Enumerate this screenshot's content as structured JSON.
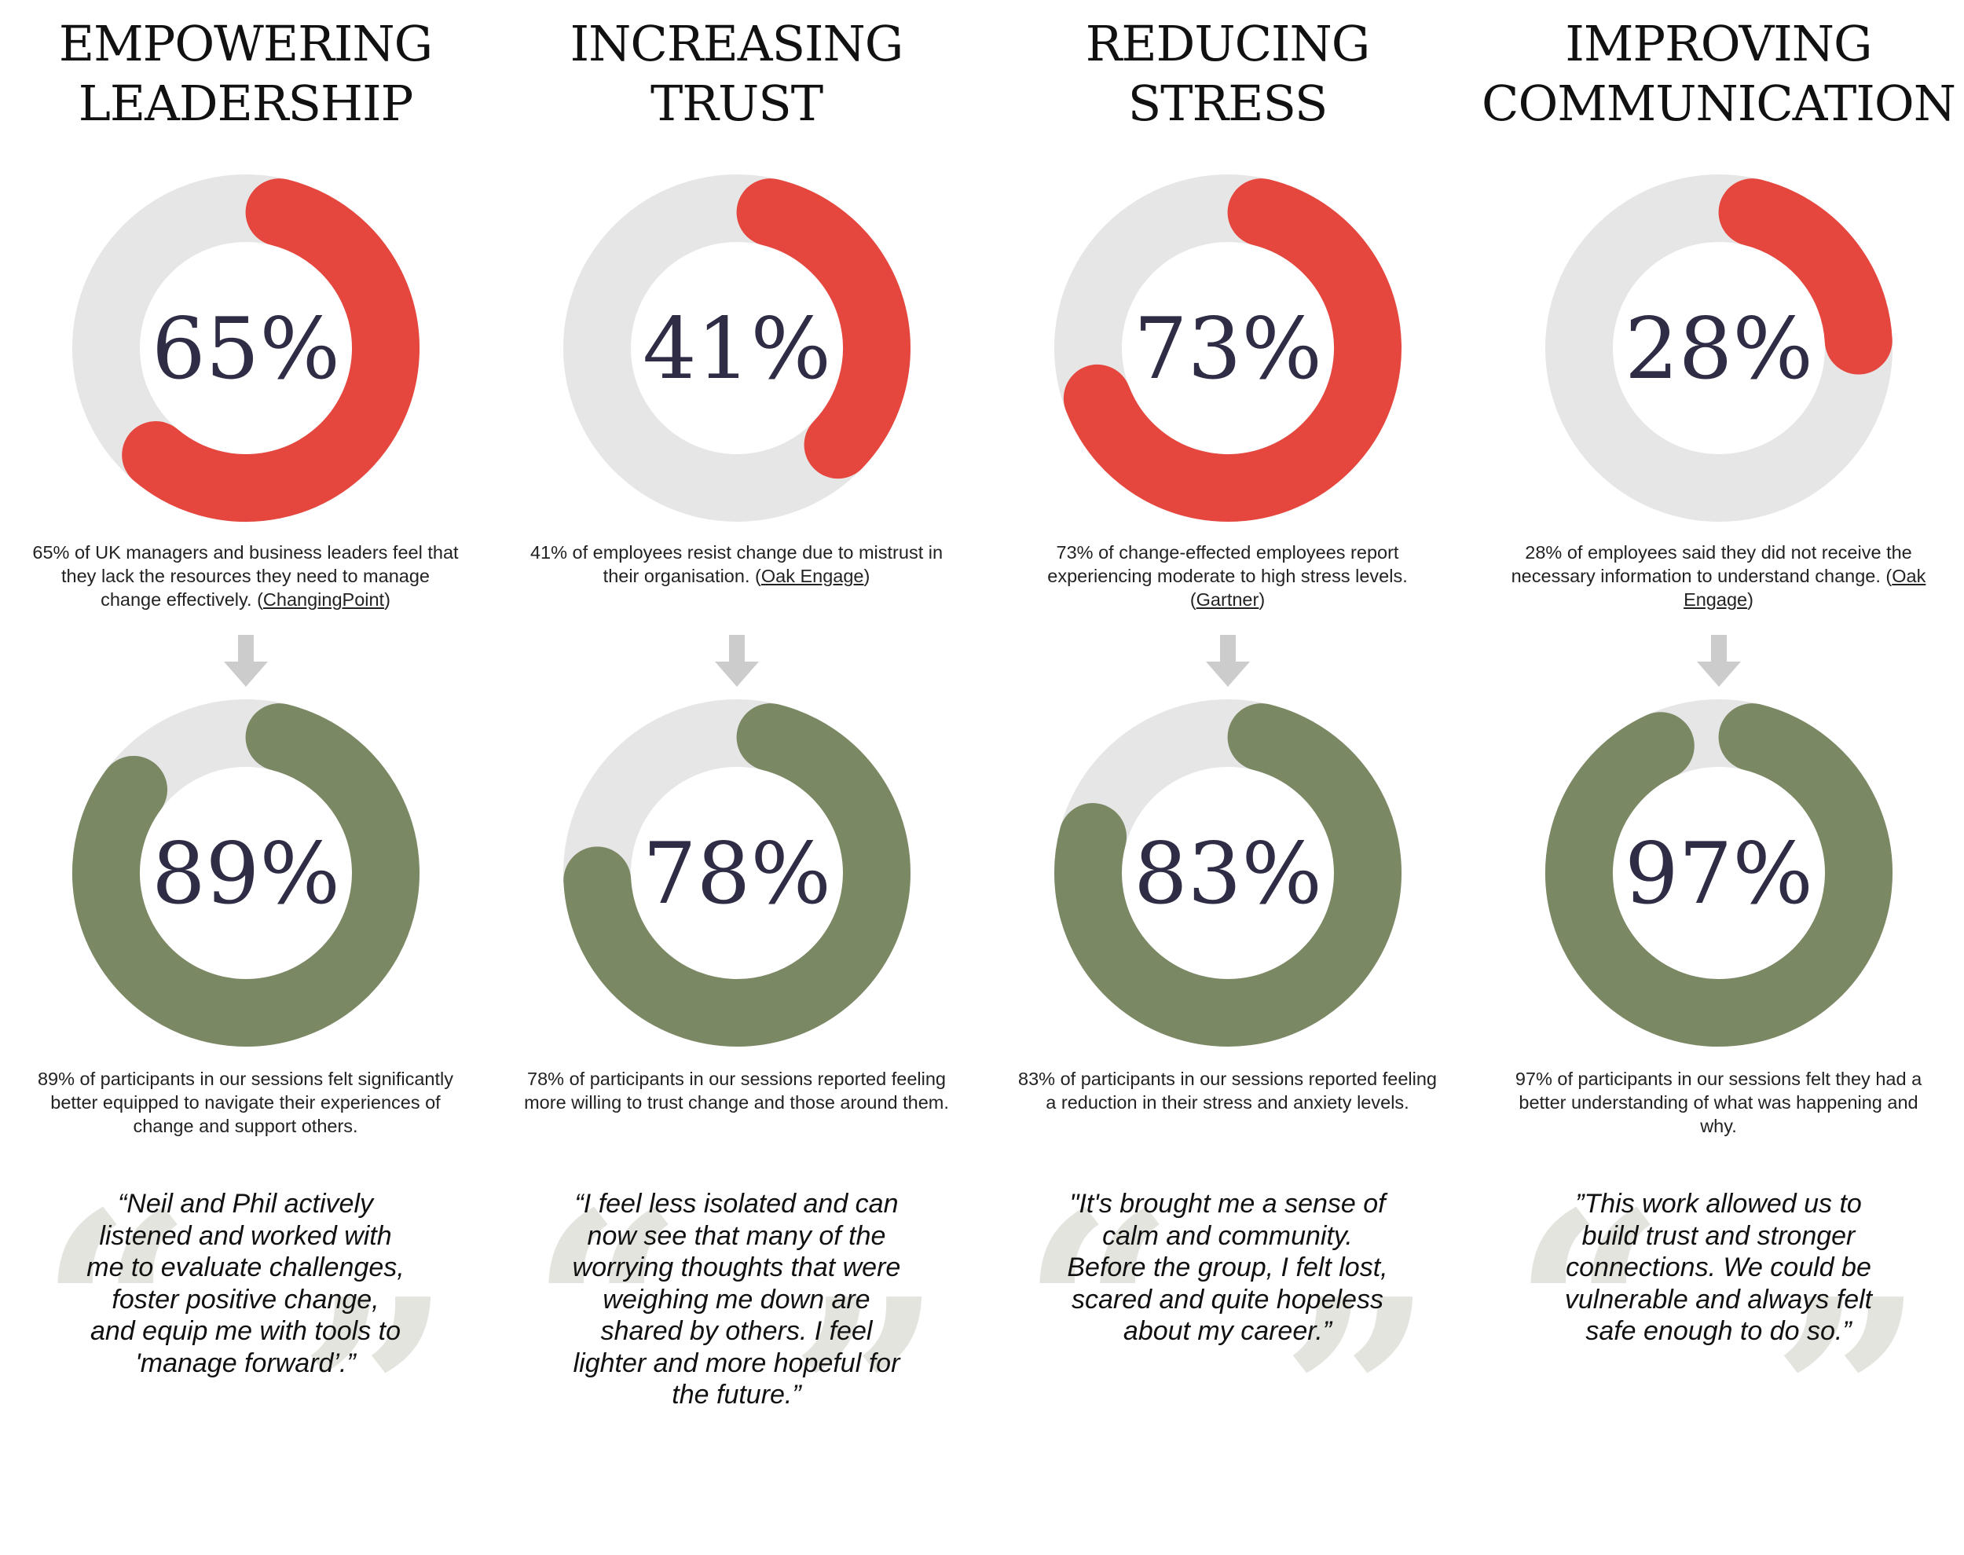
{
  "colors": {
    "negative": "#e5473e",
    "positive": "#7b8864",
    "track": "#e6e6e6",
    "arrow": "#cccccc",
    "quote_mark": "#e4e4df"
  },
  "columns": [
    {
      "heading": [
        "EMPOWERING",
        "LEADERSHIP"
      ],
      "before_label": "65%",
      "before_caption": "65% of UK managers and business leaders feel that they lack the resources they need to manage change effectively. (",
      "before_source": "ChangingPoint",
      "after_label": "89%",
      "after_caption": "89% of participants in our sessions felt significantly better equipped to navigate their experiences of change and support others.",
      "quote": [
        "“Neil and Phil actively",
        "listened and worked with",
        "me to evaluate challenges,",
        "foster positive change,",
        "and equip me with tools to",
        "'manage forward’.”"
      ]
    },
    {
      "heading": [
        "INCREASING",
        "TRUST"
      ],
      "before_label": "41%",
      "before_caption": "41% of employees resist change due to mistrust in their organisation. (",
      "before_source": "Oak Engage",
      "after_label": "78%",
      "after_caption": "78% of participants in our sessions reported feeling more willing to trust change and those around them.",
      "quote": [
        "“I feel less isolated and can",
        "now see that many of the",
        "worrying thoughts that were",
        "weighing me down are",
        "shared by others. I feel",
        "lighter and more hopeful for",
        "the future.”"
      ]
    },
    {
      "heading": [
        "REDUCING",
        "STRESS"
      ],
      "before_label": "73%",
      "before_caption": "73% of change-effected employees report experiencing moderate to high stress levels. (",
      "before_source": "Gartner",
      "after_label": "83%",
      "after_caption": "83% of participants in our sessions reported feeling a reduction in their stress and anxiety levels.",
      "quote": [
        "\"It's brought me a sense of",
        "calm and community.",
        "Before the group, I felt lost,",
        "scared and quite hopeless",
        "about my career.”"
      ]
    },
    {
      "heading": [
        "IMPROVING",
        "COMMUNICATION"
      ],
      "before_label": "28%",
      "before_caption": "28% of employees said they did not receive the necessary information to understand change. (",
      "before_source": "Oak Engage",
      "after_label": "97%",
      "after_caption": "97% of participants in our sessions felt they had a better understanding of what was happening and why.",
      "quote": [
        "”This work allowed us to",
        "build trust and stronger",
        "connections. We could be",
        "vulnerable and always felt",
        "safe enough to do so.”"
      ]
    }
  ],
  "chart_data": [
    {
      "type": "pie",
      "title": "EMPOWERING LEADERSHIP",
      "before_value": 65,
      "after_value": 89,
      "unit": "%"
    },
    {
      "type": "pie",
      "title": "INCREASING TRUST",
      "before_value": 41,
      "after_value": 78,
      "unit": "%"
    },
    {
      "type": "pie",
      "title": "REDUCING STRESS",
      "before_value": 73,
      "after_value": 83,
      "unit": "%"
    },
    {
      "type": "pie",
      "title": "IMPROVING COMMUNICATION",
      "before_value": 28,
      "after_value": 97,
      "unit": "%"
    }
  ]
}
